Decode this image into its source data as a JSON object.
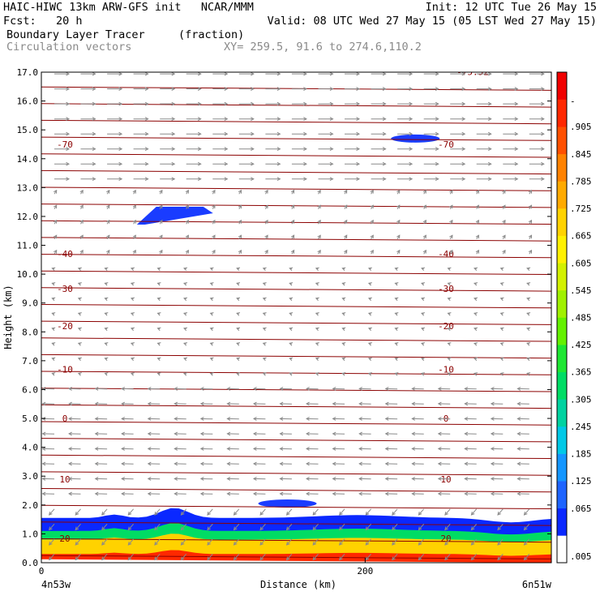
{
  "header": {
    "line1_left": "HAIC-HIWC 13km ARW-GFS init   NCAR/MMM",
    "line1_right": "Init: 12 UTC Tue 26 May 15",
    "line2_left": "Fcst:   20 h",
    "line2_right": "Valid: 08 UTC Wed 27 May 15 (05 LST Wed 27 May 15)",
    "line3_left": "Boundary Layer Tracer",
    "line3_mid": "(fraction)",
    "line4_left": "Circulation vectors",
    "line4_mid": "XY= 259.5, 91.6 to 274.6,110.2"
  },
  "chart_data": {
    "type": "heatmap",
    "title": "Boundary Layer Tracer",
    "xlabel": "Distance (km)",
    "ylabel": "Height (km)",
    "xlim": [
      0,
      315
    ],
    "ylim": [
      0,
      17
    ],
    "x_ticks": [
      {
        "value": 0,
        "label": "0"
      },
      {
        "value": 200,
        "label": "200"
      }
    ],
    "x_endpoint_labels": {
      "left": "4n53w",
      "right": "6n51w"
    },
    "y_ticks": [
      {
        "value": 0,
        "label": "0.0"
      },
      {
        "value": 1,
        "label": "1.0"
      },
      {
        "value": 2,
        "label": "2.0"
      },
      {
        "value": 3,
        "label": "3.0"
      },
      {
        "value": 4,
        "label": "4.0"
      },
      {
        "value": 5,
        "label": "5.0"
      },
      {
        "value": 6,
        "label": "6.0"
      },
      {
        "value": 7,
        "label": "7.0"
      },
      {
        "value": 8,
        "label": "8.0"
      },
      {
        "value": 9,
        "label": "9.0"
      },
      {
        "value": 10,
        "label": "10.0"
      },
      {
        "value": 11,
        "label": "11.0"
      },
      {
        "value": 12,
        "label": "12.0"
      },
      {
        "value": 13,
        "label": "13.0"
      },
      {
        "value": 14,
        "label": "14.0"
      },
      {
        "value": 15,
        "label": "15.0"
      },
      {
        "value": 16,
        "label": "16.0"
      },
      {
        "value": 17,
        "label": "17.0"
      }
    ],
    "colorbar": {
      "labels": [
        ".005",
        ".065",
        ".125",
        ".185",
        ".245",
        ".305",
        ".365",
        ".425",
        ".485",
        ".545",
        ".605",
        ".665",
        ".725",
        ".785",
        ".845",
        ".905",
        "-"
      ],
      "colors": [
        "#ffffff",
        "#0a28ff",
        "#1e64ff",
        "#1496ff",
        "#00c8e6",
        "#00d2a0",
        "#00dc64",
        "#1ee632",
        "#64f000",
        "#a0f000",
        "#d2f000",
        "#fff000",
        "#ffd200",
        "#ffaa00",
        "#ff8200",
        "#ff5000",
        "#ff2800",
        "#f00000"
      ]
    },
    "isotherm_labels": [
      {
        "z": 14.5,
        "label": "-70"
      },
      {
        "z": 10.7,
        "label": "-40"
      },
      {
        "z": 9.5,
        "label": "-30"
      },
      {
        "z": 8.2,
        "label": "-20"
      },
      {
        "z": 6.7,
        "label": "-10"
      },
      {
        "z": 5.0,
        "label": "0"
      },
      {
        "z": 2.9,
        "label": "10"
      },
      {
        "z": 0.85,
        "label": "20"
      }
    ],
    "top_label": "-75.52",
    "tracer_bands": [
      {
        "x0": 0,
        "x1": 315,
        "z_top": 1.55
      },
      {
        "x0": 0,
        "x1": 315,
        "z_top": 1.1
      },
      {
        "x0": 0,
        "x1": 315,
        "z_top": 0.8
      },
      {
        "x0": 0,
        "x1": 315,
        "z_top": 0.3
      }
    ],
    "tracer_blobs": [
      {
        "x": 80,
        "z": 12.0,
        "value": 0.065
      },
      {
        "x": 231,
        "z": 14.7,
        "value": 0.065
      },
      {
        "x": 152,
        "z": 2.05,
        "value": 0.065
      }
    ]
  }
}
